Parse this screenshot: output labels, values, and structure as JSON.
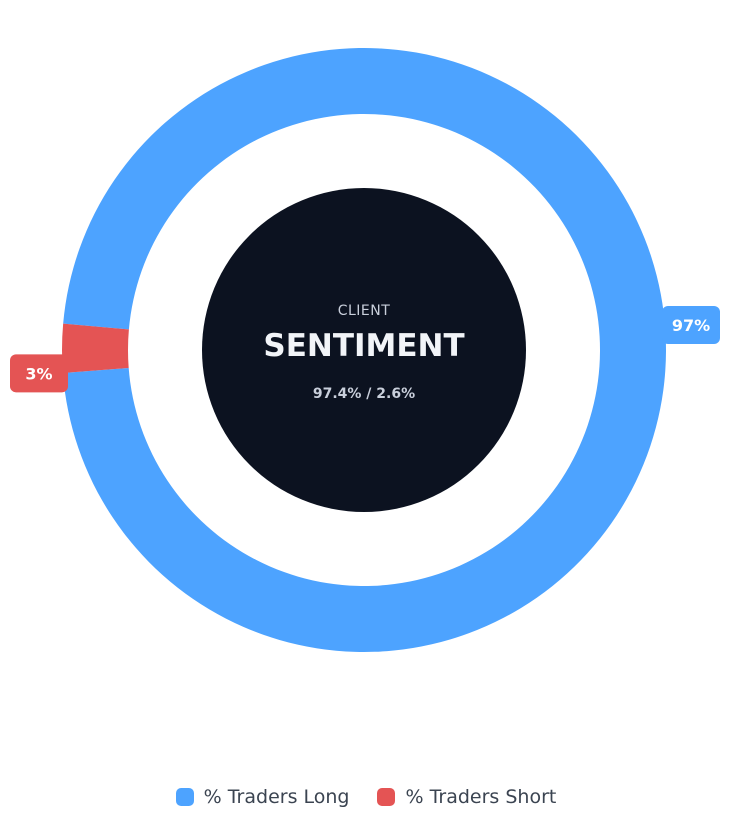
{
  "chart_data": {
    "type": "pie",
    "subtype": "donut",
    "center": {
      "subtitle": "CLIENT",
      "title": "SENTIMENT",
      "values_text": "97.4% / 2.6%"
    },
    "series": [
      {
        "name": "% Traders Long",
        "value": 97.4,
        "label": "97%",
        "color": "#4da3ff"
      },
      {
        "name": "% Traders Short",
        "value": 2.6,
        "label": "3%",
        "color": "#e45454"
      }
    ],
    "legend": {
      "placement": "bottom"
    },
    "colors": {
      "center_fill": "#0c1220"
    }
  }
}
